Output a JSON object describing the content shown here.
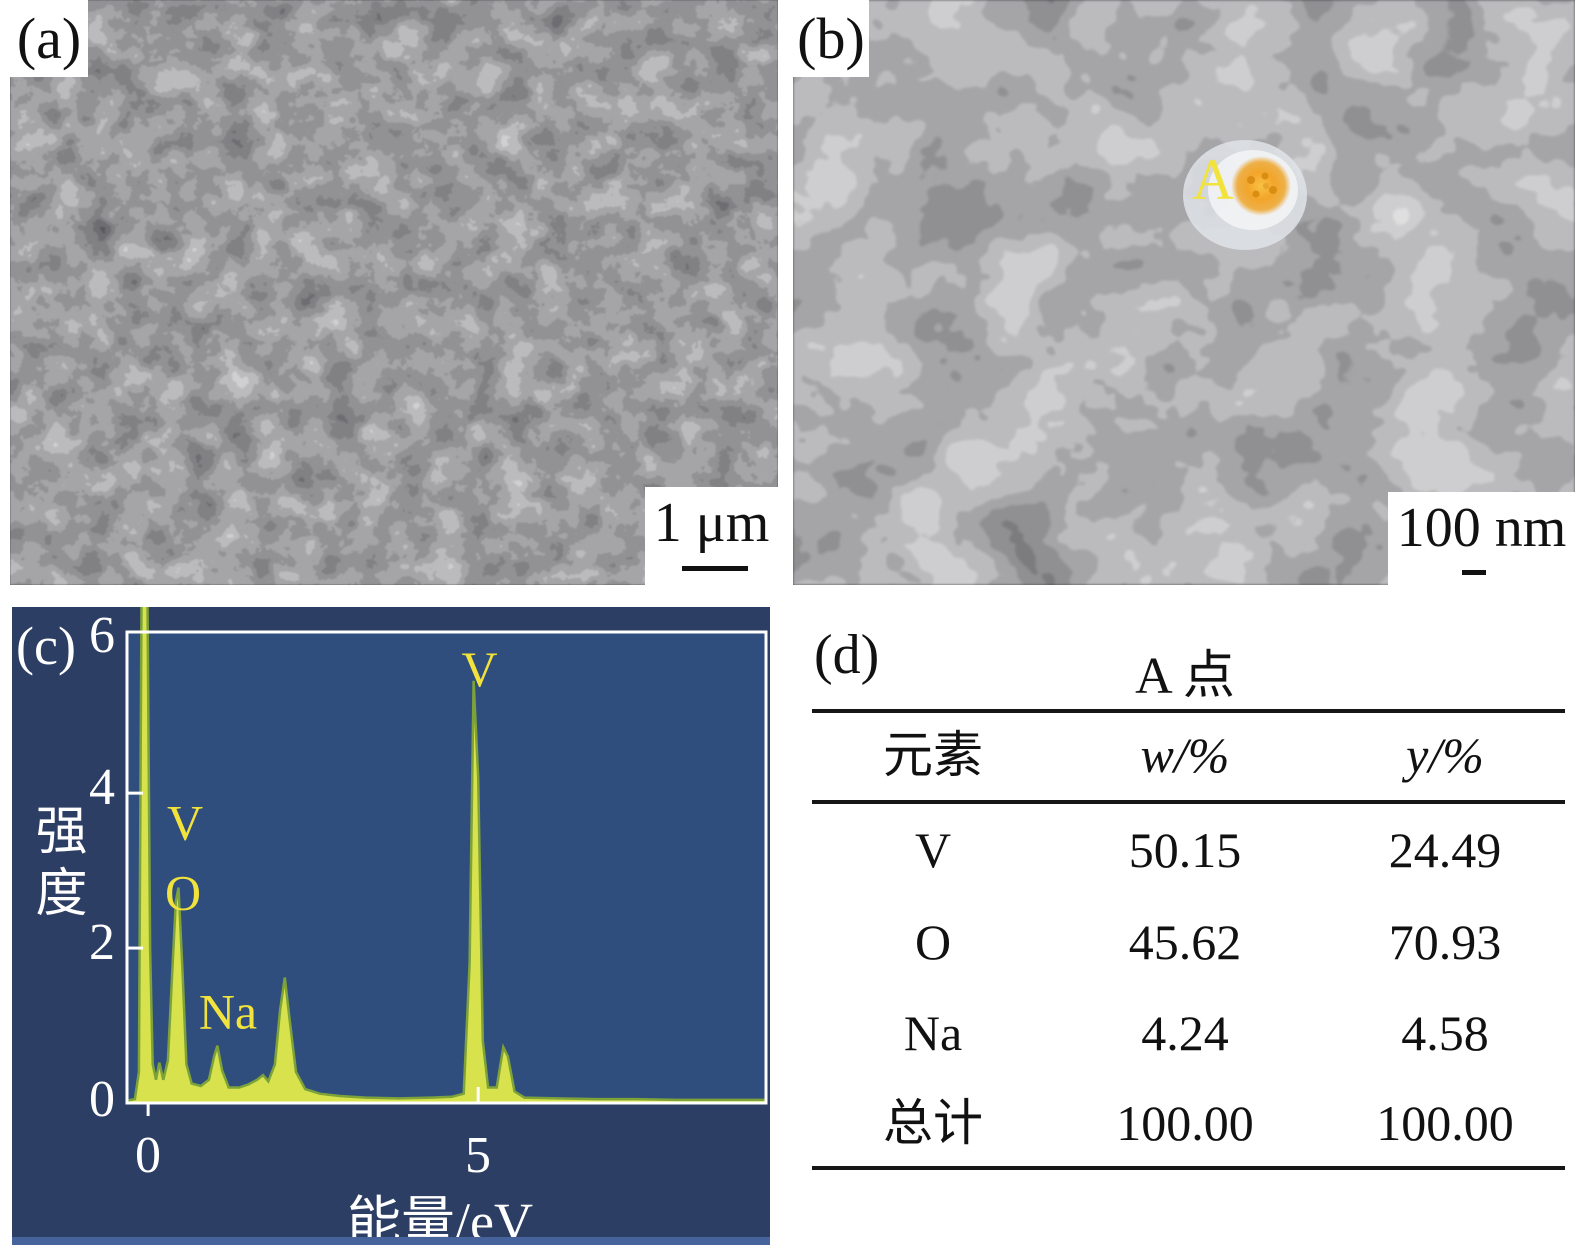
{
  "panels": {
    "a": {
      "label": "(a)",
      "scale_text": "1 μm"
    },
    "b": {
      "label": "(b)",
      "scale_text": "100 nm",
      "point_label": "A",
      "point_color": "#f0a32a"
    },
    "c": {
      "label": "(c)"
    },
    "d": {
      "label": "(d)"
    }
  },
  "chart_data": {
    "type": "area",
    "title": "",
    "xlabel": "能量/eV",
    "ylabel": "强度",
    "xlim": [
      -0.32,
      9.36
    ],
    "ylim": [
      0,
      6.08
    ],
    "xticks": [
      0,
      5
    ],
    "yticks": [
      0,
      2,
      4,
      6
    ],
    "grid": false,
    "legend": "none",
    "plot_bg": "#2f4e7d",
    "panel_bg": "#2c3e64",
    "fill_color": "#d7e24d",
    "edge_color": "#7da23a",
    "label_color": "#f2e33c",
    "axis_color": "#ffffff",
    "points": [
      [
        -0.32,
        0.03
      ],
      [
        -0.2,
        0.05
      ],
      [
        -0.14,
        0.4
      ],
      [
        -0.1,
        6.45
      ],
      [
        -0.01,
        6.45
      ],
      [
        0.03,
        2.0
      ],
      [
        0.07,
        0.5
      ],
      [
        0.12,
        0.3
      ],
      [
        0.17,
        0.52
      ],
      [
        0.23,
        0.3
      ],
      [
        0.3,
        0.55
      ],
      [
        0.36,
        1.6
      ],
      [
        0.42,
        2.6
      ],
      [
        0.46,
        2.78
      ],
      [
        0.52,
        1.7
      ],
      [
        0.58,
        0.5
      ],
      [
        0.66,
        0.25
      ],
      [
        0.8,
        0.22
      ],
      [
        0.92,
        0.3
      ],
      [
        1.0,
        0.6
      ],
      [
        1.05,
        0.74
      ],
      [
        1.12,
        0.42
      ],
      [
        1.22,
        0.2
      ],
      [
        1.38,
        0.2
      ],
      [
        1.52,
        0.24
      ],
      [
        1.65,
        0.3
      ],
      [
        1.74,
        0.36
      ],
      [
        1.82,
        0.28
      ],
      [
        1.92,
        0.5
      ],
      [
        2.0,
        1.2
      ],
      [
        2.07,
        1.62
      ],
      [
        2.14,
        1.1
      ],
      [
        2.24,
        0.4
      ],
      [
        2.38,
        0.18
      ],
      [
        2.6,
        0.12
      ],
      [
        2.9,
        0.09
      ],
      [
        3.3,
        0.07
      ],
      [
        3.8,
        0.06
      ],
      [
        4.3,
        0.07
      ],
      [
        4.6,
        0.08
      ],
      [
        4.78,
        0.12
      ],
      [
        4.87,
        1.8
      ],
      [
        4.93,
        5.45
      ],
      [
        5.0,
        4.2
      ],
      [
        5.07,
        0.8
      ],
      [
        5.15,
        0.2
      ],
      [
        5.28,
        0.2
      ],
      [
        5.38,
        0.72
      ],
      [
        5.45,
        0.6
      ],
      [
        5.55,
        0.15
      ],
      [
        5.7,
        0.07
      ],
      [
        6.2,
        0.06
      ],
      [
        6.8,
        0.05
      ],
      [
        7.4,
        0.05
      ],
      [
        8.0,
        0.04
      ],
      [
        8.6,
        0.04
      ],
      [
        9.36,
        0.04
      ]
    ],
    "annotations": [
      {
        "text": "V",
        "x": 0.56,
        "y": 3.62
      },
      {
        "text": "O",
        "x": 0.53,
        "y": 2.72
      },
      {
        "text": "Na",
        "x": 1.21,
        "y": 1.18
      },
      {
        "text": "V",
        "x": 5.02,
        "y": 5.6
      }
    ]
  },
  "table": {
    "title": "A 点",
    "columns": [
      "元素",
      "w/%",
      "y/%"
    ],
    "rows": [
      [
        "V",
        "50.15",
        "24.49"
      ],
      [
        "O",
        "45.62",
        "70.93"
      ],
      [
        "Na",
        "4.24",
        "4.58"
      ],
      [
        "总计",
        "100.00",
        "100.00"
      ]
    ]
  }
}
